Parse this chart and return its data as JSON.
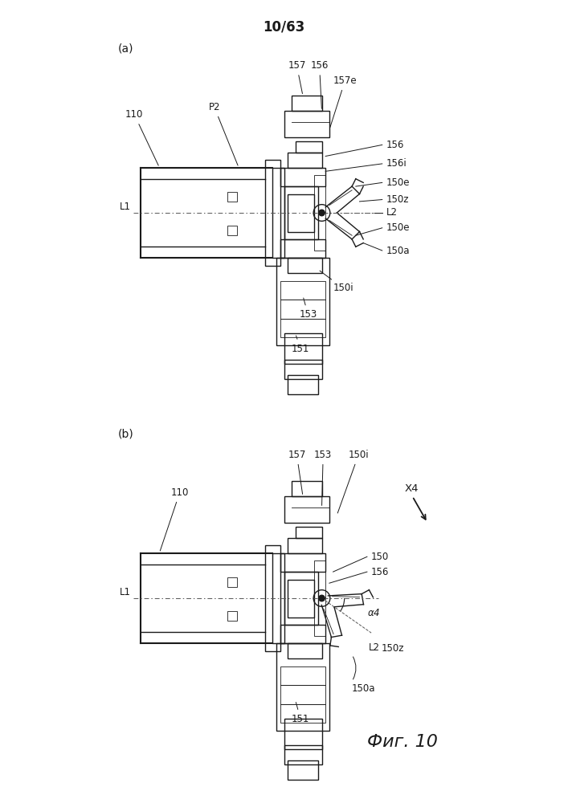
{
  "title": "10/63",
  "fig_label_a": "(a)",
  "fig_label_b": "(b)",
  "caption": "Фиг. 10",
  "bg_color": "#ffffff",
  "line_color": "#1a1a1a",
  "lw": 1.0,
  "lw_thin": 0.6,
  "lw_thick": 1.5,
  "fs_title": 12,
  "fs_label": 10,
  "fs_annot": 8.5
}
